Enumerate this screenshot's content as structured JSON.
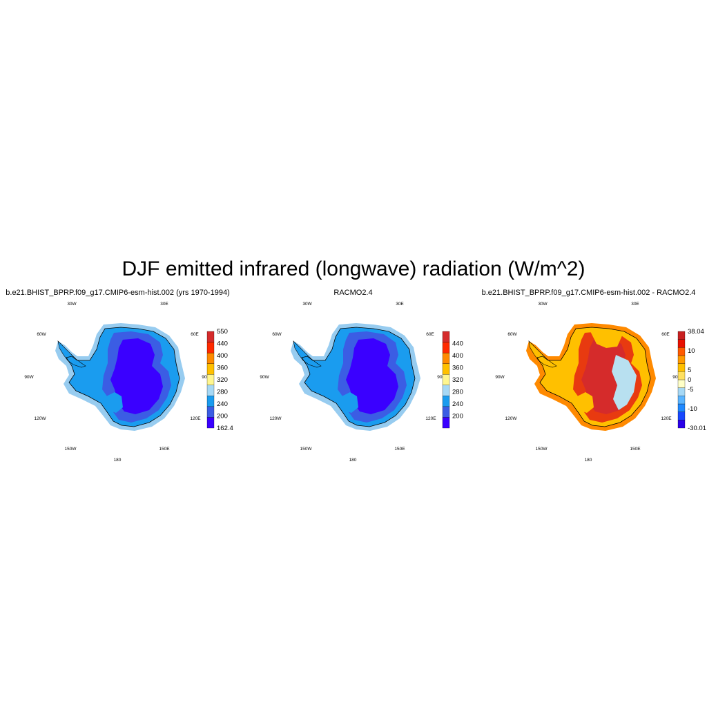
{
  "title": "DJF emitted infrared (longwave) radiation (W/m^2)",
  "panels": [
    {
      "title": "b.e21.BHIST_BPRP.f09_g17.CMIP6-esm-hist.002 (yrs 1970-1994)",
      "colorbar": {
        "colors": [
          "#3a00ff",
          "#3b5de4",
          "#1a9cef",
          "#a6d8f5",
          "#fff68f",
          "#ffc000",
          "#ff8a00",
          "#ff2a00",
          "#d52b2b"
        ],
        "labels": [
          "162.4",
          "200",
          "240",
          "280",
          "320",
          "360",
          "400",
          "440",
          "550"
        ]
      },
      "fields": {
        "outer": "#97ccf0",
        "shelf": "#1a9cef",
        "mid": "#3b5de4",
        "core": "#3a00ff"
      }
    },
    {
      "title": "RACMO2.4",
      "colorbar": {
        "colors": [
          "#3a00ff",
          "#3b5de4",
          "#1a9cef",
          "#a6d8f5",
          "#fff68f",
          "#ffc000",
          "#ff8a00",
          "#ff2a00",
          "#d52b2b"
        ],
        "labels": [
          "",
          "200",
          "240",
          "280",
          "320",
          "360",
          "400",
          "440",
          ""
        ]
      },
      "fields": {
        "outer": "#97ccf0",
        "shelf": "#1a9cef",
        "mid": "#3b5de4",
        "core": "#3a00ff"
      }
    },
    {
      "title": "b.e21.BHIST_BPRP.f09_g17.CMIP6-esm-hist.002 - RACMO2.4",
      "colorbar": {
        "colors": [
          "#2a00e8",
          "#1848ff",
          "#1e88ff",
          "#5ab4ff",
          "#a6d8f5",
          "#ffffc8",
          "#ffe060",
          "#ffc000",
          "#ff9a00",
          "#ff5a00",
          "#e81000",
          "#c82020"
        ],
        "labels": [
          "-30.01",
          "",
          "-10",
          "",
          "-5",
          "0",
          "5",
          "",
          "10",
          "",
          "38.04"
        ]
      },
      "fields": {
        "outer": "#ff8a00",
        "shelf": "#ffc000",
        "mid": "#e83a10",
        "core": "#d52b2b",
        "cool": "#b8e0f0"
      }
    }
  ],
  "map_labels": {
    "lon_30w": "30W",
    "lon_30e": "30E",
    "lon_60w": "60W",
    "lon_60e": "60E",
    "lon_90w": "90W",
    "lon_90e": "90E",
    "lon_120w": "120W",
    "lon_120e": "120E",
    "lon_150w": "150W",
    "lon_150e": "150E",
    "lon_180": "180"
  }
}
